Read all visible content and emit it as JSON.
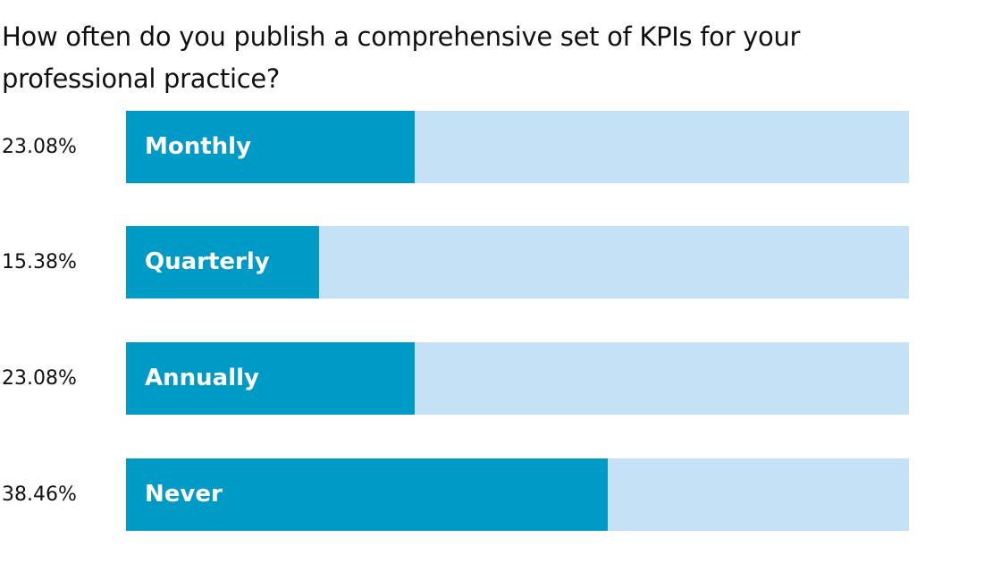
{
  "chart_data": {
    "type": "bar",
    "orientation": "horizontal",
    "title": "How often do you publish a comprehensive set of KPIs for your professional practice?",
    "categories": [
      "Monthly",
      "Quarterly",
      "Annually",
      "Never"
    ],
    "values": [
      23.08,
      15.38,
      23.08,
      38.46
    ],
    "value_labels": [
      "23.08%",
      "15.38%",
      "23.08%",
      "38.46%"
    ],
    "xlim": [
      0,
      62.5
    ],
    "colors": {
      "fill": "#009ac7",
      "track": "#c5e1f5",
      "label_text": "#ffffff",
      "text": "#111111"
    },
    "grid": false,
    "legend": "none"
  }
}
